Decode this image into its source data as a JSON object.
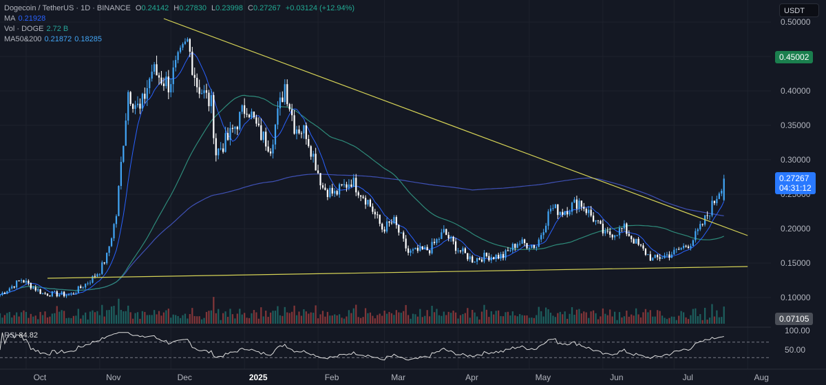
{
  "header": {
    "symbol": "Dogecoin / TetherUS · 1D · BINANCE",
    "o_label": "O",
    "o_value": "0.24142",
    "h_label": "H",
    "h_value": "0.27830",
    "l_label": "L",
    "l_value": "0.23998",
    "c_label": "C",
    "c_value": "0.27267",
    "change": "+0.03124 (+12.94%)",
    "ma_label": "MA",
    "ma_value": "0.21928",
    "vol_label": "Vol · DOGE",
    "vol_value": "2.72 B",
    "ma50_200_label": "MA50&200",
    "ma50_value": "0.21872",
    "ma200_value": "0.18285",
    "rsi_label": "RSI",
    "rsi_value": "84.82"
  },
  "price_axis": {
    "currency": "USDT",
    "ticks": [
      "0.50000",
      "0.45000",
      "0.40000",
      "0.35000",
      "0.30000",
      "0.25000",
      "0.20000",
      "0.15000",
      "0.10000",
      "0.07105"
    ],
    "tick_values": [
      0.5,
      0.45,
      0.4,
      0.35,
      0.3,
      0.25,
      0.2,
      0.15,
      0.1,
      0.07105
    ],
    "highlight_level": "0.45002",
    "current_price": "0.27267",
    "countdown": "04:31:12",
    "volume_tag": "0.07105"
  },
  "rsi_axis": {
    "ticks": [
      "100.00",
      "50.00"
    ]
  },
  "chart_data": {
    "type": "candlestick",
    "x_months": [
      "Oct",
      "Nov",
      "Dec",
      "2025",
      "Feb",
      "Mar",
      "Apr",
      "May",
      "Jun",
      "Jul",
      "Aug"
    ],
    "y_range": [
      0.07,
      0.51
    ],
    "price_path": [
      {
        "date": "2024-09-20",
        "close": 0.104
      },
      {
        "date": "2024-09-29",
        "close": 0.126
      },
      {
        "date": "2024-10-08",
        "close": 0.106
      },
      {
        "date": "2024-10-20",
        "close": 0.104
      },
      {
        "date": "2024-10-28",
        "close": 0.125
      },
      {
        "date": "2024-11-01",
        "close": 0.139
      },
      {
        "date": "2024-11-04",
        "close": 0.16
      },
      {
        "date": "2024-11-08",
        "close": 0.22
      },
      {
        "date": "2024-11-11",
        "close": 0.33
      },
      {
        "date": "2024-11-13",
        "close": 0.4
      },
      {
        "date": "2024-11-18",
        "close": 0.37
      },
      {
        "date": "2024-11-23",
        "close": 0.43
      },
      {
        "date": "2024-11-30",
        "close": 0.41
      },
      {
        "date": "2024-12-08",
        "close": 0.47
      },
      {
        "date": "2024-12-12",
        "close": 0.41
      },
      {
        "date": "2024-12-18",
        "close": 0.38
      },
      {
        "date": "2024-12-20",
        "close": 0.31
      },
      {
        "date": "2024-12-25",
        "close": 0.33
      },
      {
        "date": "2025-01-02",
        "close": 0.38
      },
      {
        "date": "2025-01-07",
        "close": 0.34
      },
      {
        "date": "2025-01-12",
        "close": 0.32
      },
      {
        "date": "2025-01-18",
        "close": 0.41
      },
      {
        "date": "2025-01-22",
        "close": 0.35
      },
      {
        "date": "2025-01-27",
        "close": 0.34
      },
      {
        "date": "2025-02-03",
        "close": 0.26
      },
      {
        "date": "2025-02-08",
        "close": 0.25
      },
      {
        "date": "2025-02-15",
        "close": 0.27
      },
      {
        "date": "2025-02-22",
        "close": 0.24
      },
      {
        "date": "2025-02-28",
        "close": 0.2
      },
      {
        "date": "2025-03-05",
        "close": 0.21
      },
      {
        "date": "2025-03-11",
        "close": 0.165
      },
      {
        "date": "2025-03-20",
        "close": 0.17
      },
      {
        "date": "2025-03-26",
        "close": 0.195
      },
      {
        "date": "2025-04-01",
        "close": 0.17
      },
      {
        "date": "2025-04-07",
        "close": 0.155
      },
      {
        "date": "2025-04-13",
        "close": 0.16
      },
      {
        "date": "2025-04-20",
        "close": 0.16
      },
      {
        "date": "2025-04-26",
        "close": 0.18
      },
      {
        "date": "2025-05-04",
        "close": 0.175
      },
      {
        "date": "2025-05-10",
        "close": 0.23
      },
      {
        "date": "2025-05-15",
        "close": 0.225
      },
      {
        "date": "2025-05-22",
        "close": 0.24
      },
      {
        "date": "2025-05-28",
        "close": 0.215
      },
      {
        "date": "2025-06-02",
        "close": 0.19
      },
      {
        "date": "2025-06-10",
        "close": 0.2
      },
      {
        "date": "2025-06-16",
        "close": 0.175
      },
      {
        "date": "2025-06-22",
        "close": 0.155
      },
      {
        "date": "2025-07-01",
        "close": 0.165
      },
      {
        "date": "2025-07-08",
        "close": 0.18
      },
      {
        "date": "2025-07-12",
        "close": 0.2
      },
      {
        "date": "2025-07-18",
        "close": 0.24
      },
      {
        "date": "2025-07-22",
        "close": 0.27267
      }
    ],
    "trendlines": [
      {
        "from": {
          "date": "2024-11-28",
          "price": 0.505
        },
        "to": {
          "date": "2025-08-01",
          "price": 0.19
        },
        "color": "#d6d356"
      },
      {
        "from": {
          "date": "2024-10-10",
          "price": 0.128
        },
        "to": {
          "date": "2025-08-01",
          "price": 0.145
        },
        "color": "#d6d356"
      }
    ],
    "ma_colors": {
      "ma": "#2962ff",
      "ma50": "#26a69a",
      "ma200": "#2962ff"
    },
    "candle_colors": {
      "up": "#42a5f5",
      "down": "#ffffff"
    },
    "rsi_range": [
      0,
      100
    ],
    "rsi_levels": [
      70,
      30
    ],
    "rsi_last": 84.82
  }
}
